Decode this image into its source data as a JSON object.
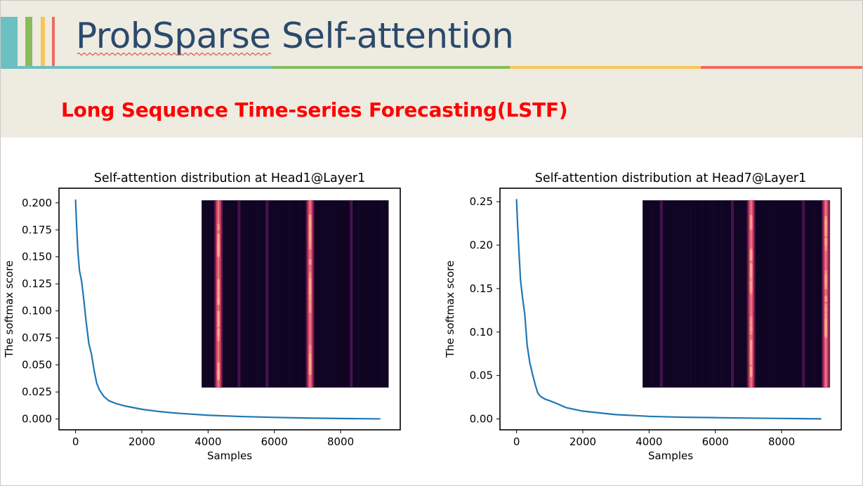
{
  "slide": {
    "title": "ProbSparse Self-attention",
    "subtitle": "Long Sequence Time-series Forecasting(LSTF)",
    "colors": {
      "background": "#ffffff",
      "header_band": "#eeebe1",
      "title": "#2b4a6b",
      "subtitle": "#ff0000",
      "teal": "#6cc0c1",
      "green": "#88bb5c",
      "yellow": "#f7c659",
      "red": "#ef6b5e"
    }
  },
  "chart_data": [
    {
      "type": "line",
      "title": "Self-attention distribution at Head1@Layer1",
      "xlabel": "Samples",
      "ylabel": "The softmax score",
      "xlim": [
        -500,
        9800
      ],
      "ylim": [
        -0.01,
        0.2135
      ],
      "xticks": [
        0,
        2000,
        4000,
        6000,
        8000
      ],
      "xtick_labels": [
        "0",
        "2000",
        "4000",
        "6000",
        "8000"
      ],
      "yticks": [
        0,
        0.025,
        0.05,
        0.075,
        0.1,
        0.125,
        0.15,
        0.175,
        0.2
      ],
      "ytick_labels": [
        "0.000",
        "0.025",
        "0.050",
        "0.075",
        "0.100",
        "0.125",
        "0.150",
        "0.175",
        "0.200"
      ],
      "line_color": "#1f77b4",
      "series": [
        {
          "x": [
            0,
            30,
            70,
            120,
            180,
            250,
            320,
            400,
            480,
            560,
            640,
            720,
            850,
            1000,
            1200,
            1500,
            2000,
            2500,
            3000,
            3500,
            4000,
            5000,
            6000,
            7000,
            8000,
            9200
          ],
          "values": [
            0.203,
            0.18,
            0.155,
            0.137,
            0.128,
            0.11,
            0.09,
            0.07,
            0.06,
            0.045,
            0.033,
            0.027,
            0.021,
            0.017,
            0.0145,
            0.012,
            0.009,
            0.007,
            0.0055,
            0.0045,
            0.0035,
            0.0023,
            0.0015,
            0.0009,
            0.0005,
            0.0001
          ]
        }
      ],
      "inset": {
        "description": "attention heatmap",
        "bright_columns": [
          0.09,
          0.58
        ],
        "faint_columns": [
          0.2,
          0.35,
          0.8
        ]
      }
    },
    {
      "type": "line",
      "title": "Self-attention distribution at Head7@Layer1",
      "xlabel": "Samples",
      "ylabel": "The softmax score",
      "xlim": [
        -500,
        9800
      ],
      "ylim": [
        -0.0125,
        0.2655
      ],
      "xticks": [
        0,
        2000,
        4000,
        6000,
        8000
      ],
      "xtick_labels": [
        "0",
        "2000",
        "4000",
        "6000",
        "8000"
      ],
      "yticks": [
        0,
        0.05,
        0.1,
        0.15,
        0.2,
        0.25
      ],
      "ytick_labels": [
        "0.00",
        "0.05",
        "0.10",
        "0.15",
        "0.20",
        "0.25"
      ],
      "line_color": "#1f77b4",
      "series": [
        {
          "x": [
            0,
            30,
            70,
            120,
            180,
            250,
            320,
            400,
            480,
            560,
            640,
            720,
            850,
            1000,
            1200,
            1500,
            2000,
            2500,
            3000,
            3500,
            4000,
            5000,
            6000,
            7000,
            8000,
            9200
          ],
          "values": [
            0.253,
            0.225,
            0.195,
            0.16,
            0.14,
            0.12,
            0.085,
            0.065,
            0.052,
            0.04,
            0.03,
            0.026,
            0.023,
            0.021,
            0.018,
            0.013,
            0.009,
            0.007,
            0.005,
            0.004,
            0.003,
            0.002,
            0.0015,
            0.001,
            0.0006,
            0.0001
          ]
        }
      ],
      "inset": {
        "description": "attention heatmap",
        "bright_columns": [
          0.58,
          0.98
        ],
        "faint_columns": [
          0.1,
          0.48,
          0.86
        ]
      }
    }
  ]
}
